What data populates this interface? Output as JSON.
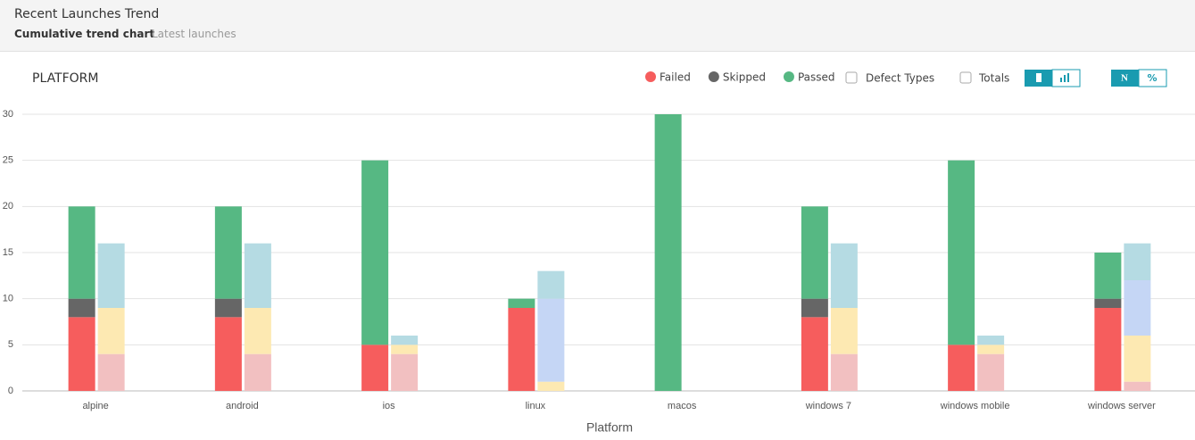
{
  "header": {
    "title": "Recent Launches Trend",
    "tabs": [
      "Cumulative trend chart",
      "Latest launches"
    ]
  },
  "controls": {
    "checkboxes": [
      "Defect Types",
      "Totals"
    ],
    "toggles": [
      "N",
      "%"
    ]
  },
  "chart_data": {
    "type": "bar",
    "title": "PLATFORM",
    "x_label": "Platform",
    "categories": [
      "alpine",
      "android",
      "ios",
      "linux",
      "macos",
      "windows 7",
      "windows mobile",
      "windows server"
    ],
    "ylim": [
      0,
      30
    ],
    "yticks": [
      0,
      5,
      10,
      15,
      20,
      25,
      30
    ],
    "grid": true,
    "series": [
      {
        "name": "Failed",
        "color": "#f65d5d",
        "stack": 0,
        "values": [
          8,
          8,
          5,
          9,
          0,
          8,
          5,
          9
        ]
      },
      {
        "name": "Skipped",
        "color": "#666666",
        "stack": 0,
        "values": [
          2,
          2,
          0,
          0,
          0,
          2,
          0,
          1
        ]
      },
      {
        "name": "Passed",
        "color": "#56b883",
        "stack": 0,
        "values": [
          10,
          10,
          20,
          1,
          30,
          10,
          20,
          5
        ]
      },
      {
        "color": "#f2c0c1",
        "stack": 1,
        "values": [
          4,
          4,
          4,
          0,
          0,
          4,
          4,
          1
        ]
      },
      {
        "color": "#fde9b2",
        "stack": 1,
        "values": [
          5,
          5,
          1,
          1,
          0,
          5,
          1,
          5
        ]
      },
      {
        "color": "#c5d6f5",
        "stack": 1,
        "values": [
          0,
          0,
          0,
          9,
          0,
          0,
          0,
          6
        ]
      },
      {
        "color": "#b5dbe3",
        "stack": 1,
        "values": [
          7,
          7,
          1,
          3,
          0,
          7,
          1,
          4
        ]
      }
    ]
  }
}
